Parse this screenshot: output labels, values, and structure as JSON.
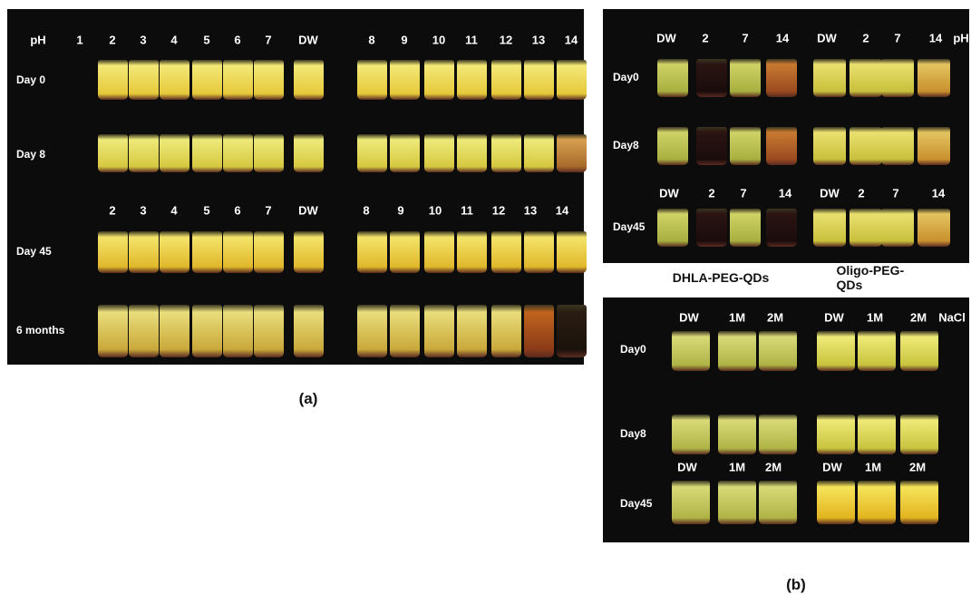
{
  "panel_a": {
    "header": [
      "pH",
      "1",
      "2",
      "3",
      "4",
      "5",
      "6",
      "7",
      "DW",
      "8",
      "9",
      "10",
      "11",
      "12",
      "13",
      "14"
    ],
    "header_day45": [
      "2",
      "3",
      "4",
      "5",
      "6",
      "7",
      "DW",
      "8",
      "9",
      "10",
      "11",
      "12",
      "13",
      "14"
    ],
    "rows": [
      "Day 0",
      "Day 8",
      "Day 45",
      "6 months"
    ],
    "caption": "(a)"
  },
  "panel_b": {
    "ph_panel": {
      "header_left": [
        "DW",
        "2",
        "7",
        "14"
      ],
      "header_right": [
        "DW",
        "2",
        "7",
        "14",
        "pH"
      ],
      "header_day45_left": [
        "DW",
        "2",
        "7",
        "14"
      ],
      "header_day45_right": [
        "DW",
        "2",
        "7",
        "14"
      ],
      "rows": [
        "Day0",
        "Day8",
        "Day45"
      ]
    },
    "group_labels": [
      "DHLA-PEG-QDs",
      "Oligo-PEG-QDs"
    ],
    "nacl_panel": {
      "header_left": [
        "DW",
        "1M",
        "2M"
      ],
      "header_right": [
        "DW",
        "1M",
        "2M",
        "NaCl"
      ],
      "header_day45_left": [
        "DW",
        "1M",
        "2M"
      ],
      "header_day45_right": [
        "DW",
        "1M",
        "2M"
      ],
      "rows": [
        "Day0",
        "Day8",
        "Day45"
      ]
    },
    "caption": "(b)"
  }
}
